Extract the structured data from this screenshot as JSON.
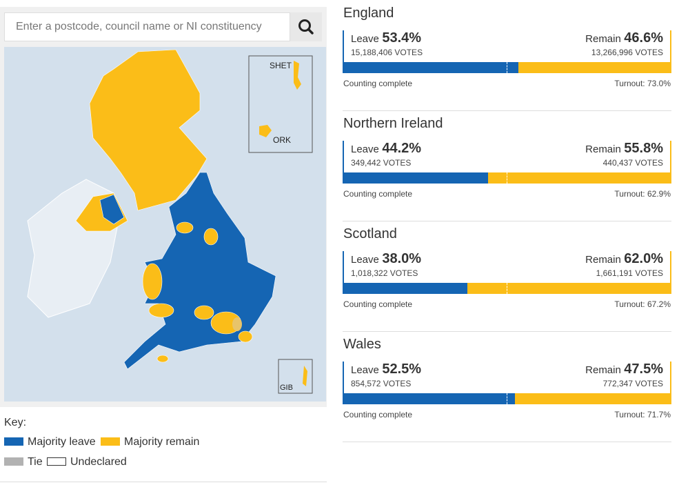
{
  "search": {
    "placeholder": "Enter a postcode, council name or NI constituency"
  },
  "map": {
    "insets": [
      "SHET",
      "ORK",
      "GIB"
    ]
  },
  "key": {
    "title": "Key:",
    "items": [
      {
        "label": "Majority leave",
        "color": "#1565b3"
      },
      {
        "label": "Majority remain",
        "color": "#fbbd18"
      },
      {
        "label": "Tie",
        "color": "#b2b2b2"
      },
      {
        "label": "Undeclared",
        "color": "#ffffff"
      }
    ]
  },
  "results": [
    {
      "region": "England",
      "leave_label": "Leave",
      "leave_pct": 53.4,
      "leave_pct_label": "53.4%",
      "leave_votes": "15,188,406 VOTES",
      "remain_label": "Remain",
      "remain_pct": 46.6,
      "remain_pct_label": "46.6%",
      "remain_votes": "13,266,996 VOTES",
      "status": "Counting complete",
      "turnout": "Turnout: 73.0%"
    },
    {
      "region": "Northern Ireland",
      "leave_label": "Leave",
      "leave_pct": 44.2,
      "leave_pct_label": "44.2%",
      "leave_votes": "349,442 VOTES",
      "remain_label": "Remain",
      "remain_pct": 55.8,
      "remain_pct_label": "55.8%",
      "remain_votes": "440,437 VOTES",
      "status": "Counting complete",
      "turnout": "Turnout: 62.9%"
    },
    {
      "region": "Scotland",
      "leave_label": "Leave",
      "leave_pct": 38.0,
      "leave_pct_label": "38.0%",
      "leave_votes": "1,018,322 VOTES",
      "remain_label": "Remain",
      "remain_pct": 62.0,
      "remain_pct_label": "62.0%",
      "remain_votes": "1,661,191 VOTES",
      "status": "Counting complete",
      "turnout": "Turnout: 67.2%"
    },
    {
      "region": "Wales",
      "leave_label": "Leave",
      "leave_pct": 52.5,
      "leave_pct_label": "52.5%",
      "leave_votes": "854,572 VOTES",
      "remain_label": "Remain",
      "remain_pct": 47.5,
      "remain_pct_label": "47.5%",
      "remain_votes": "772,347 VOTES",
      "status": "Counting complete",
      "turnout": "Turnout: 71.7%"
    }
  ]
}
